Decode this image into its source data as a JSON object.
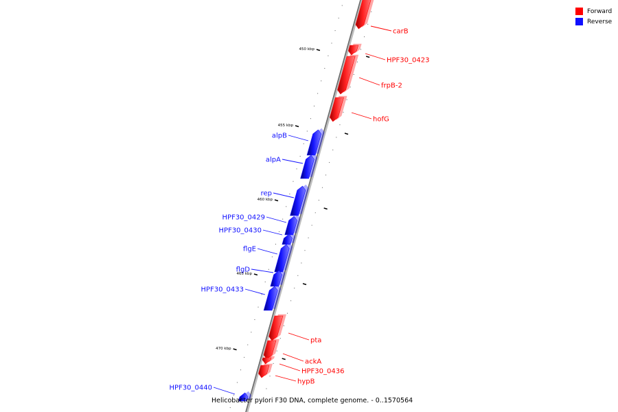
{
  "legend": {
    "forward": {
      "label": "Forward",
      "color": "#ff0000"
    },
    "reverse": {
      "label": "Reverse",
      "color": "#1010ff"
    }
  },
  "caption": "Helicobacter pylori F30 DNA, complete genome. - 0..1570564",
  "ticks": [
    "450 kbp",
    "455 kbp",
    "460 kbp",
    "465 kbp",
    "470 kbp"
  ],
  "genes": [
    {
      "name": "carB",
      "strand": "forward"
    },
    {
      "name": "HPF30_0423",
      "strand": "forward"
    },
    {
      "name": "frpB-2",
      "strand": "forward"
    },
    {
      "name": "hofG",
      "strand": "forward"
    },
    {
      "name": "alpB",
      "strand": "reverse"
    },
    {
      "name": "alpA",
      "strand": "reverse"
    },
    {
      "name": "rep",
      "strand": "reverse"
    },
    {
      "name": "HPF30_0429",
      "strand": "reverse"
    },
    {
      "name": "HPF30_0430",
      "strand": "reverse"
    },
    {
      "name": "flgE",
      "strand": "reverse"
    },
    {
      "name": "flgD",
      "strand": "reverse"
    },
    {
      "name": "HPF30_0433",
      "strand": "reverse"
    },
    {
      "name": "pta",
      "strand": "forward"
    },
    {
      "name": "ackA",
      "strand": "forward"
    },
    {
      "name": "HPF30_0436",
      "strand": "forward"
    },
    {
      "name": "hypB",
      "strand": "forward"
    },
    {
      "name": "HPF30_0440",
      "strand": "reverse"
    }
  ]
}
